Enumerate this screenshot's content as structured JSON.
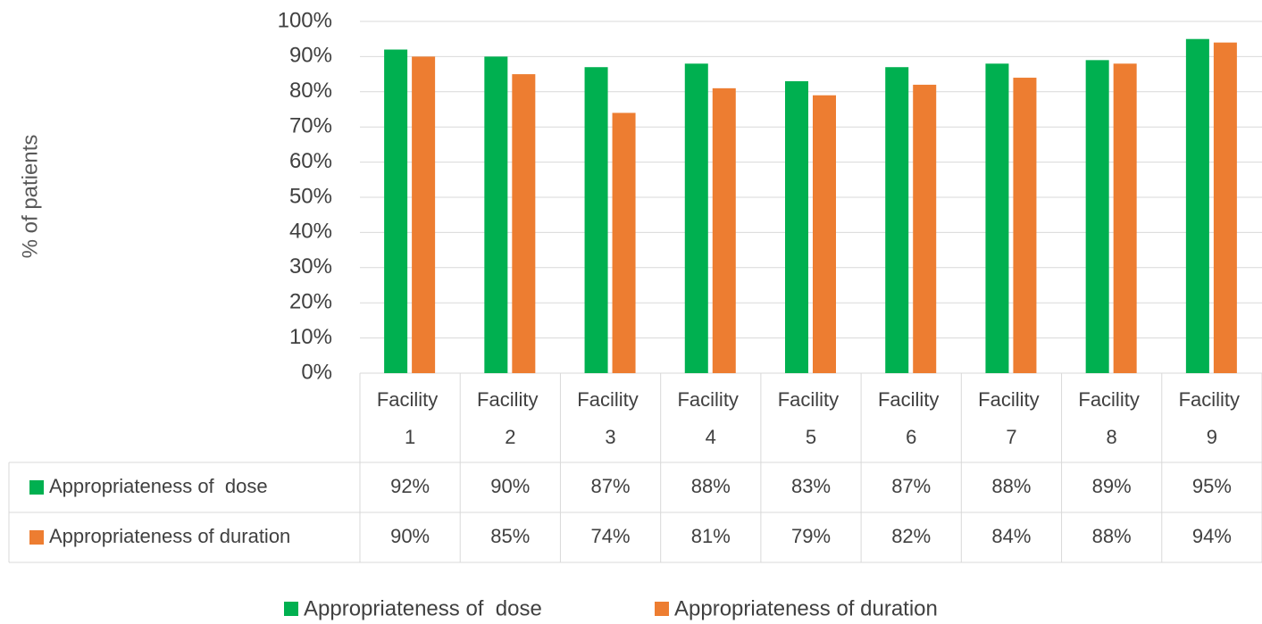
{
  "chart_data": {
    "type": "bar",
    "y_label": "% of patients",
    "categories": [
      "Facility 1",
      "Facility 2",
      "Facility 3",
      "Facility 4",
      "Facility 5",
      "Facility 6",
      "Facility 7",
      "Facility 8",
      "Facility 9"
    ],
    "series": [
      {
        "name": "Appropriateness of  dose",
        "color": "#00b050",
        "values": [
          92,
          90,
          87,
          88,
          83,
          87,
          88,
          89,
          95
        ],
        "value_labels": [
          "92%",
          "90%",
          "87%",
          "88%",
          "83%",
          "87%",
          "88%",
          "89%",
          "95%"
        ]
      },
      {
        "name": "Appropriateness of duration",
        "color": "#ed7d31",
        "values": [
          90,
          85,
          74,
          81,
          79,
          82,
          84,
          88,
          94
        ],
        "value_labels": [
          "90%",
          "85%",
          "74%",
          "81%",
          "79%",
          "82%",
          "84%",
          "88%",
          "94%"
        ]
      }
    ],
    "ylim": [
      0,
      100
    ],
    "yticks": [
      {
        "value": 0,
        "label": "0%"
      },
      {
        "value": 10,
        "label": "10%"
      },
      {
        "value": 20,
        "label": "20%"
      },
      {
        "value": 30,
        "label": "30%"
      },
      {
        "value": 40,
        "label": "40%"
      },
      {
        "value": 50,
        "label": "50%"
      },
      {
        "value": 60,
        "label": "60%"
      },
      {
        "value": 70,
        "label": "70%"
      },
      {
        "value": 80,
        "label": "80%"
      },
      {
        "value": 90,
        "label": "90%"
      },
      {
        "value": 100,
        "label": "100%"
      }
    ],
    "grid": true
  }
}
